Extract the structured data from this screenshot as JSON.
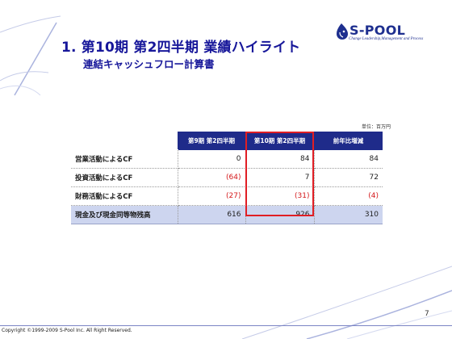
{
  "slide": {
    "title": "1. 第10期 第2四半期 業績ハイライト",
    "subtitle": "連結キャッシュフロー計算書",
    "page_number": "7",
    "copyright": "Copyright ©1999-2009 S-Pool Inc. All Right Reserved."
  },
  "logo": {
    "name": "S-POOL",
    "tagline": "Change Leadership,Management and Process",
    "icon": "drop-logo-icon"
  },
  "table": {
    "unit": "単位：百万円",
    "headers": [
      "",
      "第9期 第2四半期",
      "第10期 第2四半期",
      "前年比増減"
    ],
    "rows": [
      {
        "label": "営業活動によるCF",
        "prev": "0",
        "curr": "84",
        "diff": "84"
      },
      {
        "label": "投資活動によるCF",
        "prev": "(64)",
        "curr": "7",
        "diff": "72"
      },
      {
        "label": "財務活動によるCF",
        "prev": "(27)",
        "curr": "(31)",
        "diff": "(4)"
      },
      {
        "label": "現金及び現金同等物残高",
        "prev": "616",
        "curr": "926",
        "diff": "310"
      }
    ]
  },
  "colors": {
    "title": "#17179a",
    "header_bg": "#1f2b8a",
    "negative": "#d4171a",
    "highlight_border": "#e01e24",
    "total_row_bg": "#cdd5ef"
  }
}
